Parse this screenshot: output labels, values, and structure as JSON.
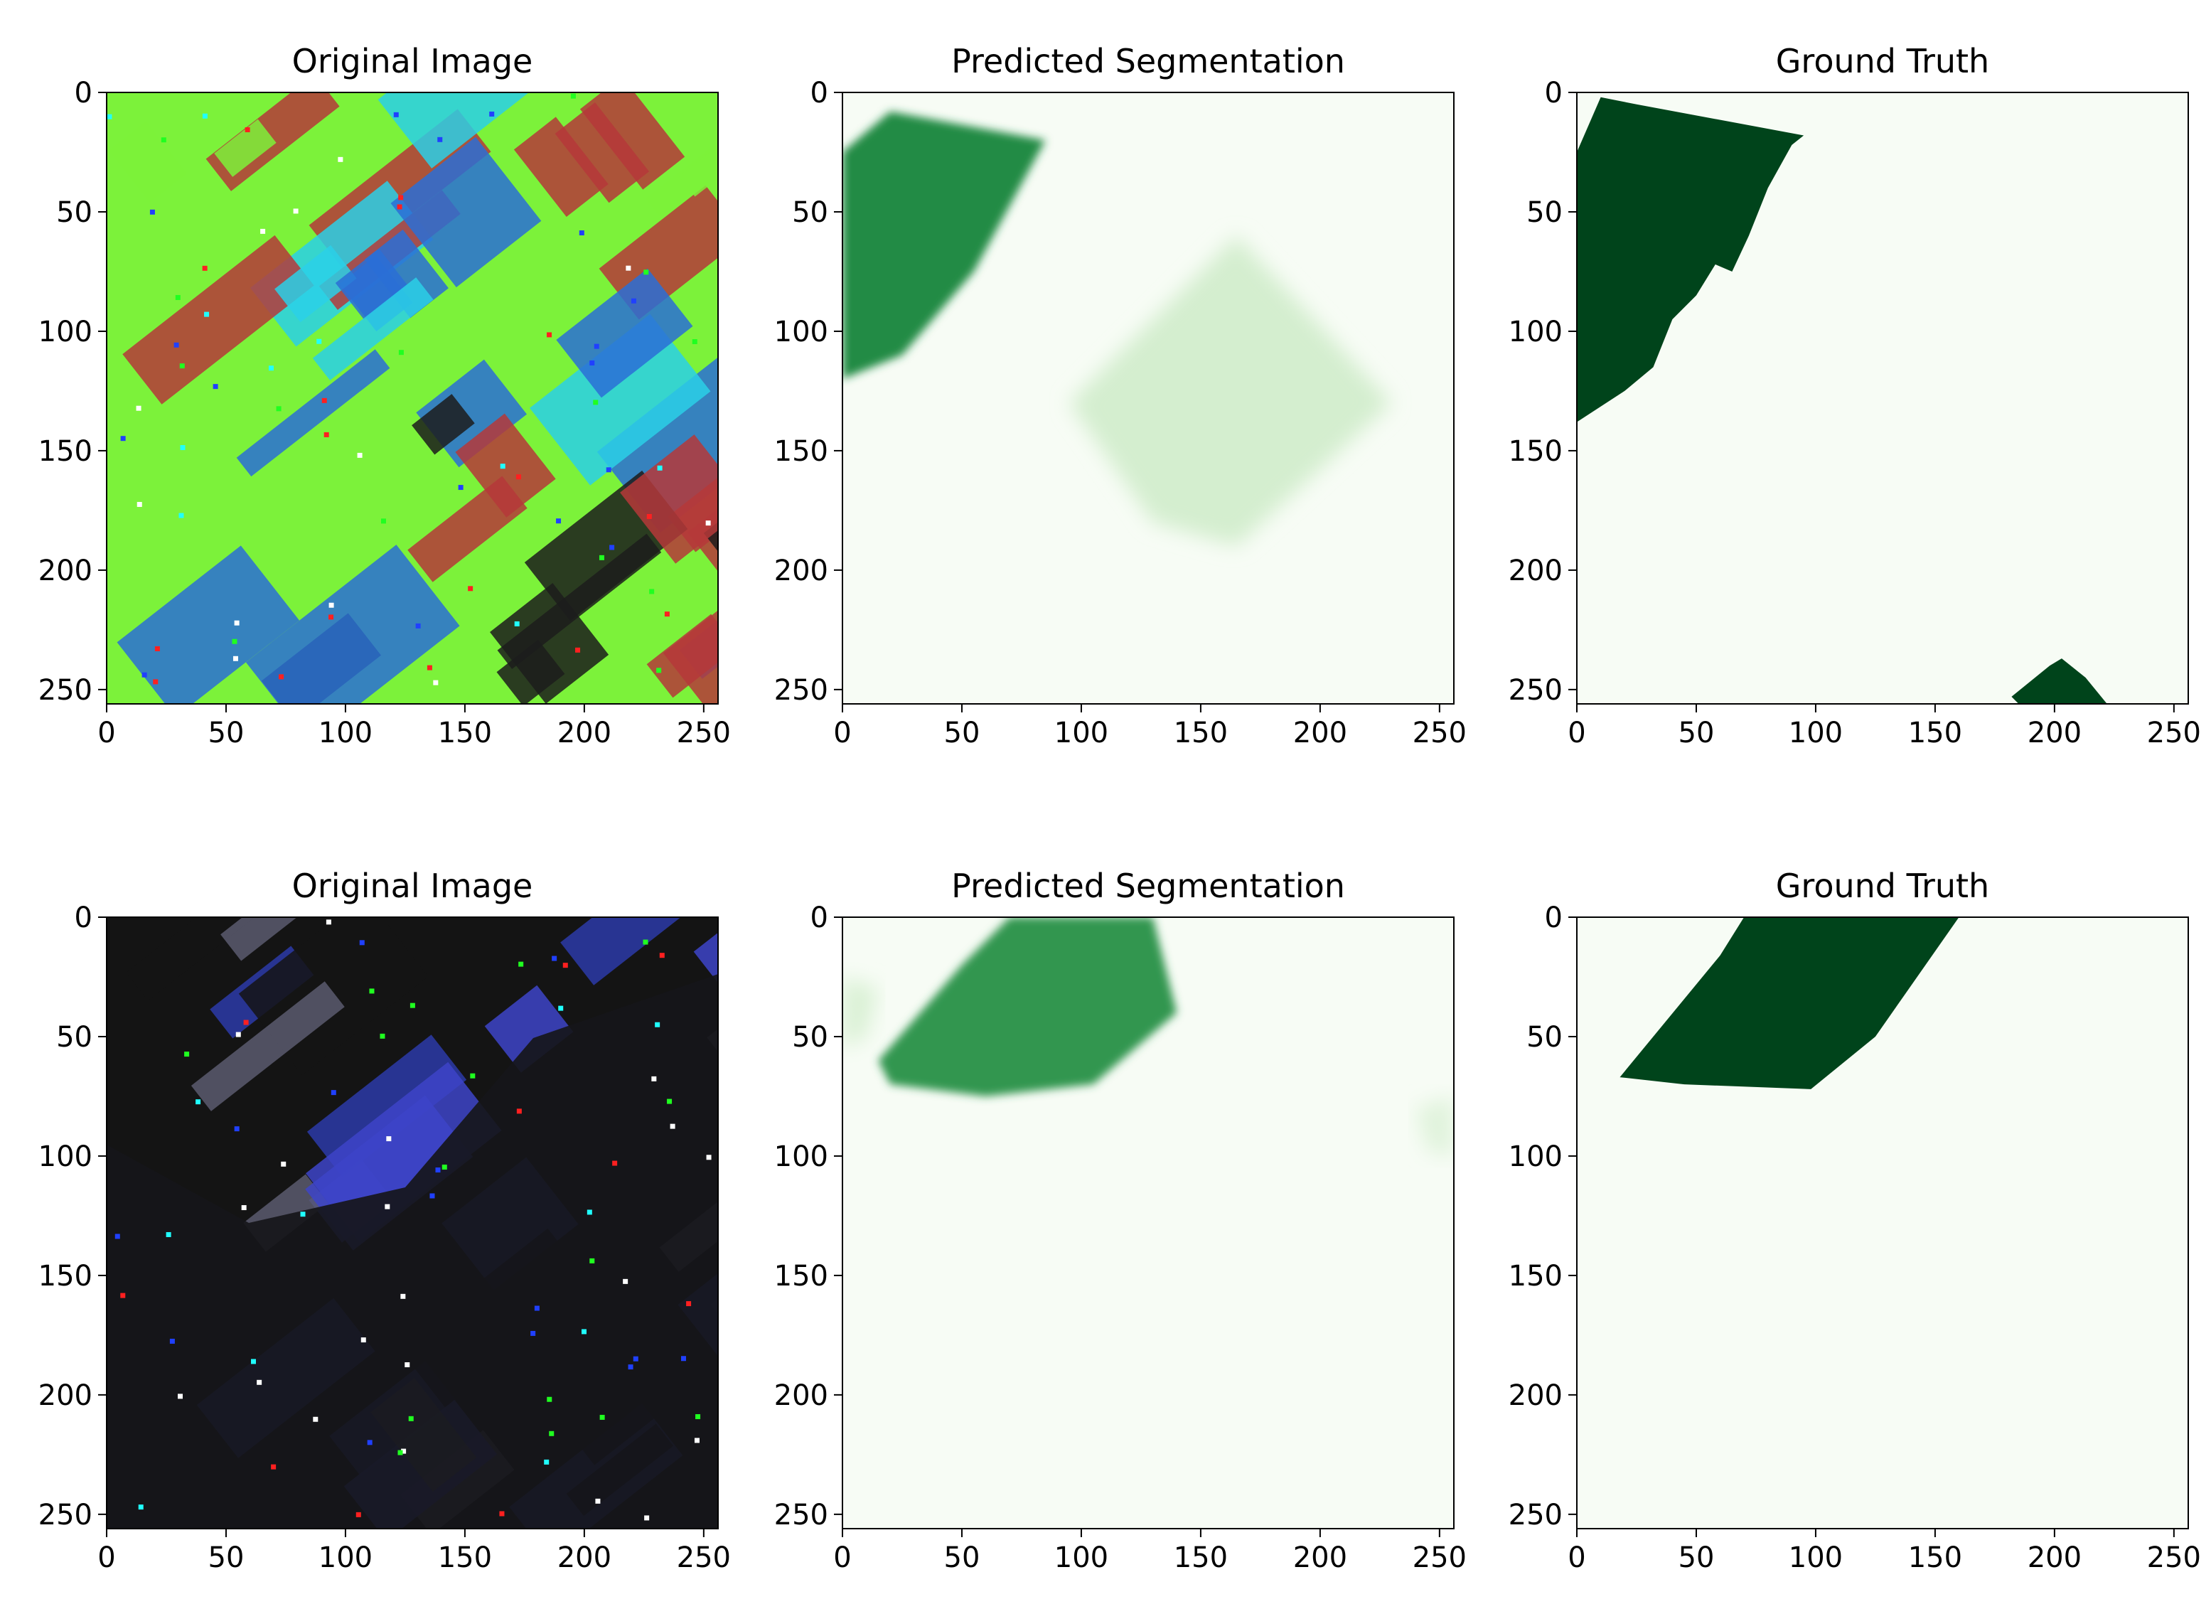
{
  "figure": {
    "rows": 2,
    "cols": 3
  },
  "chart_data": [
    {
      "type": "heatmap",
      "row": 0,
      "col": 0,
      "title": "Original Image",
      "kind": "rgb_satellite",
      "xlim": [
        0,
        256
      ],
      "ylim": [
        256,
        0
      ],
      "xticks": [
        0,
        50,
        100,
        150,
        200,
        250
      ],
      "yticks": [
        0,
        50,
        100,
        150,
        200,
        250
      ],
      "dominant_colors": [
        "#2a6fd6",
        "#7cf23a",
        "#1c1c1c",
        "#b5383a",
        "#2ad0e8"
      ]
    },
    {
      "type": "heatmap",
      "row": 0,
      "col": 1,
      "title": "Predicted Segmentation",
      "kind": "probability",
      "colormap": "Greens",
      "xlim": [
        0,
        256
      ],
      "ylim": [
        256,
        0
      ],
      "xticks": [
        0,
        50,
        100,
        150,
        200,
        250
      ],
      "yticks": [
        0,
        50,
        100,
        150,
        200,
        250
      ],
      "regions": [
        {
          "polygon": [
            [
              0,
              25
            ],
            [
              20,
              8
            ],
            [
              85,
              20
            ],
            [
              55,
              75
            ],
            [
              25,
              110
            ],
            [
              0,
              120
            ]
          ],
          "intensity": 0.75
        },
        {
          "polygon": [
            [
              95,
              130
            ],
            [
              165,
              60
            ],
            [
              230,
              130
            ],
            [
              165,
              190
            ],
            [
              130,
              180
            ]
          ],
          "intensity": 0.18
        }
      ]
    },
    {
      "type": "heatmap",
      "row": 0,
      "col": 2,
      "title": "Ground Truth",
      "kind": "mask",
      "colormap": "Greens",
      "xlim": [
        0,
        256
      ],
      "ylim": [
        256,
        0
      ],
      "xticks": [
        0,
        50,
        100,
        150,
        200,
        250
      ],
      "yticks": [
        0,
        50,
        100,
        150,
        200,
        250
      ],
      "regions": [
        {
          "polygon": [
            [
              0,
              25
            ],
            [
              10,
              2
            ],
            [
              25,
              5
            ],
            [
              95,
              18
            ],
            [
              90,
              22
            ],
            [
              80,
              40
            ],
            [
              72,
              60
            ],
            [
              65,
              75
            ],
            [
              58,
              72
            ],
            [
              50,
              85
            ],
            [
              40,
              95
            ],
            [
              32,
              115
            ],
            [
              20,
              125
            ],
            [
              0,
              138
            ]
          ],
          "intensity": 1.0
        },
        {
          "polygon": [
            [
              182,
              253
            ],
            [
              198,
              240
            ],
            [
              203,
              237
            ],
            [
              213,
              245
            ],
            [
              222,
              256
            ],
            [
              185,
              256
            ]
          ],
          "intensity": 1.0
        }
      ]
    },
    {
      "type": "heatmap",
      "row": 1,
      "col": 0,
      "title": "Original Image",
      "kind": "rgb_satellite",
      "xlim": [
        0,
        256
      ],
      "ylim": [
        256,
        0
      ],
      "xticks": [
        0,
        50,
        100,
        150,
        200,
        250
      ],
      "yticks": [
        0,
        50,
        100,
        150,
        200,
        250
      ],
      "dominant_colors": [
        "#3d44c8",
        "#141414",
        "#5a5a6e",
        "#2b3aa8"
      ]
    },
    {
      "type": "heatmap",
      "row": 1,
      "col": 1,
      "title": "Predicted Segmentation",
      "kind": "probability",
      "colormap": "Greens",
      "xlim": [
        0,
        256
      ],
      "ylim": [
        256,
        0
      ],
      "xticks": [
        0,
        50,
        100,
        150,
        200,
        250
      ],
      "yticks": [
        0,
        50,
        100,
        150,
        200,
        250
      ],
      "regions": [
        {
          "polygon": [
            [
              15,
              60
            ],
            [
              50,
              20
            ],
            [
              70,
              0
            ],
            [
              130,
              0
            ],
            [
              140,
              40
            ],
            [
              105,
              70
            ],
            [
              60,
              75
            ],
            [
              20,
              70
            ]
          ],
          "intensity": 0.7
        },
        {
          "polygon": [
            [
              0,
              25
            ],
            [
              15,
              30
            ],
            [
              10,
              50
            ],
            [
              0,
              55
            ]
          ],
          "intensity": 0.15
        },
        {
          "polygon": [
            [
              240,
              80
            ],
            [
              256,
              75
            ],
            [
              256,
              100
            ],
            [
              245,
              98
            ]
          ],
          "intensity": 0.12
        }
      ]
    },
    {
      "type": "heatmap",
      "row": 1,
      "col": 2,
      "title": "Ground Truth",
      "kind": "mask",
      "colormap": "Greens",
      "xlim": [
        0,
        256
      ],
      "ylim": [
        256,
        0
      ],
      "xticks": [
        0,
        50,
        100,
        150,
        200,
        250
      ],
      "yticks": [
        0,
        50,
        100,
        150,
        200,
        250
      ],
      "regions": [
        {
          "polygon": [
            [
              18,
              67
            ],
            [
              60,
              16
            ],
            [
              70,
              0
            ],
            [
              160,
              0
            ],
            [
              125,
              50
            ],
            [
              98,
              72
            ],
            [
              45,
              70
            ]
          ],
          "intensity": 1.0
        }
      ]
    }
  ]
}
